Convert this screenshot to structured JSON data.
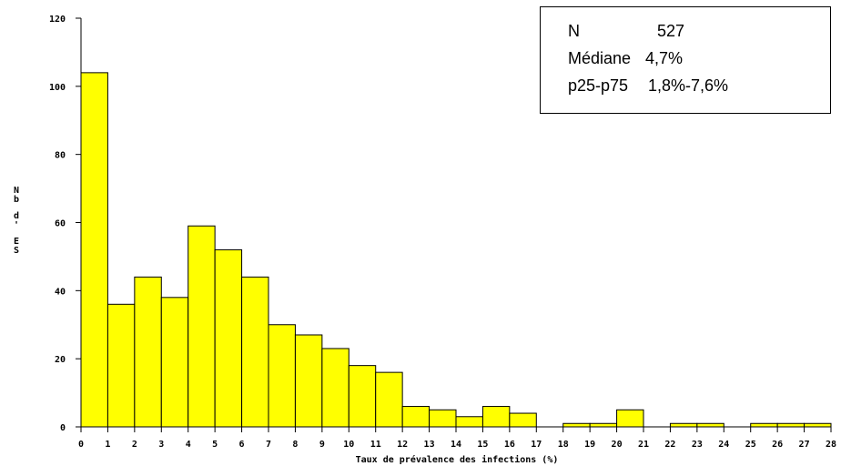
{
  "chart_data": {
    "type": "bar",
    "title": "",
    "xlabel": "Taux de prévalence des infections (%)",
    "ylabel": "Nb d'ES",
    "ylim": [
      0,
      120
    ],
    "yticks": [
      0,
      20,
      40,
      60,
      80,
      100,
      120
    ],
    "xticks": [
      "0",
      "1",
      "2",
      "3",
      "4",
      "5",
      "6",
      "7",
      "8",
      "9",
      "10",
      "11",
      "12",
      "13",
      "14",
      "15",
      "16",
      "17",
      "18",
      "19",
      "20",
      "21",
      "22",
      "23",
      "24",
      "25",
      "26",
      "27",
      "28"
    ],
    "bins": [
      {
        "from": 0,
        "to": 1,
        "value": 104
      },
      {
        "from": 1,
        "to": 2,
        "value": 36
      },
      {
        "from": 2,
        "to": 3,
        "value": 44
      },
      {
        "from": 3,
        "to": 4,
        "value": 38
      },
      {
        "from": 4,
        "to": 5,
        "value": 59
      },
      {
        "from": 5,
        "to": 6,
        "value": 52
      },
      {
        "from": 6,
        "to": 7,
        "value": 44
      },
      {
        "from": 7,
        "to": 8,
        "value": 30
      },
      {
        "from": 8,
        "to": 9,
        "value": 27
      },
      {
        "from": 9,
        "to": 10,
        "value": 23
      },
      {
        "from": 10,
        "to": 11,
        "value": 18
      },
      {
        "from": 11,
        "to": 12,
        "value": 16
      },
      {
        "from": 12,
        "to": 13,
        "value": 6
      },
      {
        "from": 13,
        "to": 14,
        "value": 5
      },
      {
        "from": 14,
        "to": 15,
        "value": 3
      },
      {
        "from": 15,
        "to": 16,
        "value": 6
      },
      {
        "from": 16,
        "to": 17,
        "value": 4
      },
      {
        "from": 17,
        "to": 18,
        "value": 0
      },
      {
        "from": 18,
        "to": 19,
        "value": 1
      },
      {
        "from": 19,
        "to": 20,
        "value": 1
      },
      {
        "from": 20,
        "to": 21,
        "value": 5
      },
      {
        "from": 21,
        "to": 22,
        "value": 0
      },
      {
        "from": 22,
        "to": 23,
        "value": 1
      },
      {
        "from": 23,
        "to": 24,
        "value": 1
      },
      {
        "from": 24,
        "to": 25,
        "value": 0
      },
      {
        "from": 25,
        "to": 26,
        "value": 1
      },
      {
        "from": 26,
        "to": 27,
        "value": 1
      },
      {
        "from": 27,
        "to": 28,
        "value": 1
      }
    ],
    "bar_color": "#FFFF00",
    "grid": false
  },
  "stats": {
    "rows": [
      {
        "label": "N",
        "value": "527"
      },
      {
        "label": "Médiane",
        "value": "4,7%"
      },
      {
        "label": "p25-p75",
        "value": "1,8%-7,6%"
      }
    ]
  },
  "ylabel_lines": [
    "N",
    "b",
    "d",
    "'",
    "E",
    "S"
  ]
}
